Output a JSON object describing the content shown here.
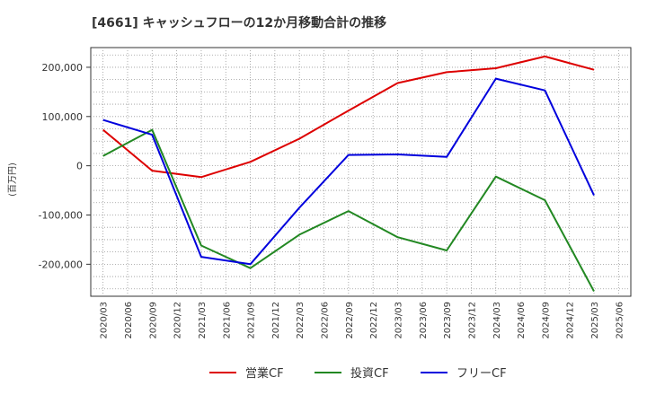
{
  "chart_data": {
    "type": "line",
    "title": "[4661]  キャッシュフローの12か月移動合計の推移",
    "ylabel": "(百万円)",
    "xlabel": "",
    "ylim": [
      -265000,
      240000
    ],
    "yticks": [
      200000,
      100000,
      0,
      -100000,
      -200000
    ],
    "ytick_labels": [
      "200,000",
      "100,000",
      "0",
      "-100,000",
      "-200,000"
    ],
    "categories": [
      "2020/03",
      "2020/06",
      "2020/09",
      "2020/12",
      "2021/03",
      "2021/06",
      "2021/09",
      "2021/12",
      "2022/03",
      "2022/06",
      "2022/09",
      "2022/12",
      "2023/03",
      "2023/06",
      "2023/09",
      "2023/12",
      "2024/03",
      "2024/06",
      "2024/09",
      "2024/12",
      "2025/03",
      "2025/06"
    ],
    "grid": true,
    "legend_position": "bottom",
    "series": [
      {
        "name": "営業CF",
        "color": "#dd0000",
        "values": [
          73000,
          null,
          -10000,
          null,
          -23000,
          null,
          8000,
          null,
          55000,
          null,
          112000,
          null,
          168000,
          null,
          190000,
          null,
          198000,
          null,
          222000,
          null,
          195000,
          null
        ]
      },
      {
        "name": "投資CF",
        "color": "#228822",
        "values": [
          20000,
          null,
          73000,
          null,
          -162000,
          null,
          -208000,
          null,
          -140000,
          null,
          -92000,
          null,
          -145000,
          null,
          -172000,
          null,
          -22000,
          null,
          -70000,
          null,
          -255000,
          null
        ]
      },
      {
        "name": "フリーCF",
        "color": "#0000dd",
        "values": [
          93000,
          null,
          63000,
          null,
          -185000,
          null,
          -200000,
          null,
          -85000,
          null,
          22000,
          null,
          23000,
          null,
          18000,
          null,
          177000,
          null,
          153000,
          null,
          -60000,
          null
        ]
      }
    ]
  }
}
